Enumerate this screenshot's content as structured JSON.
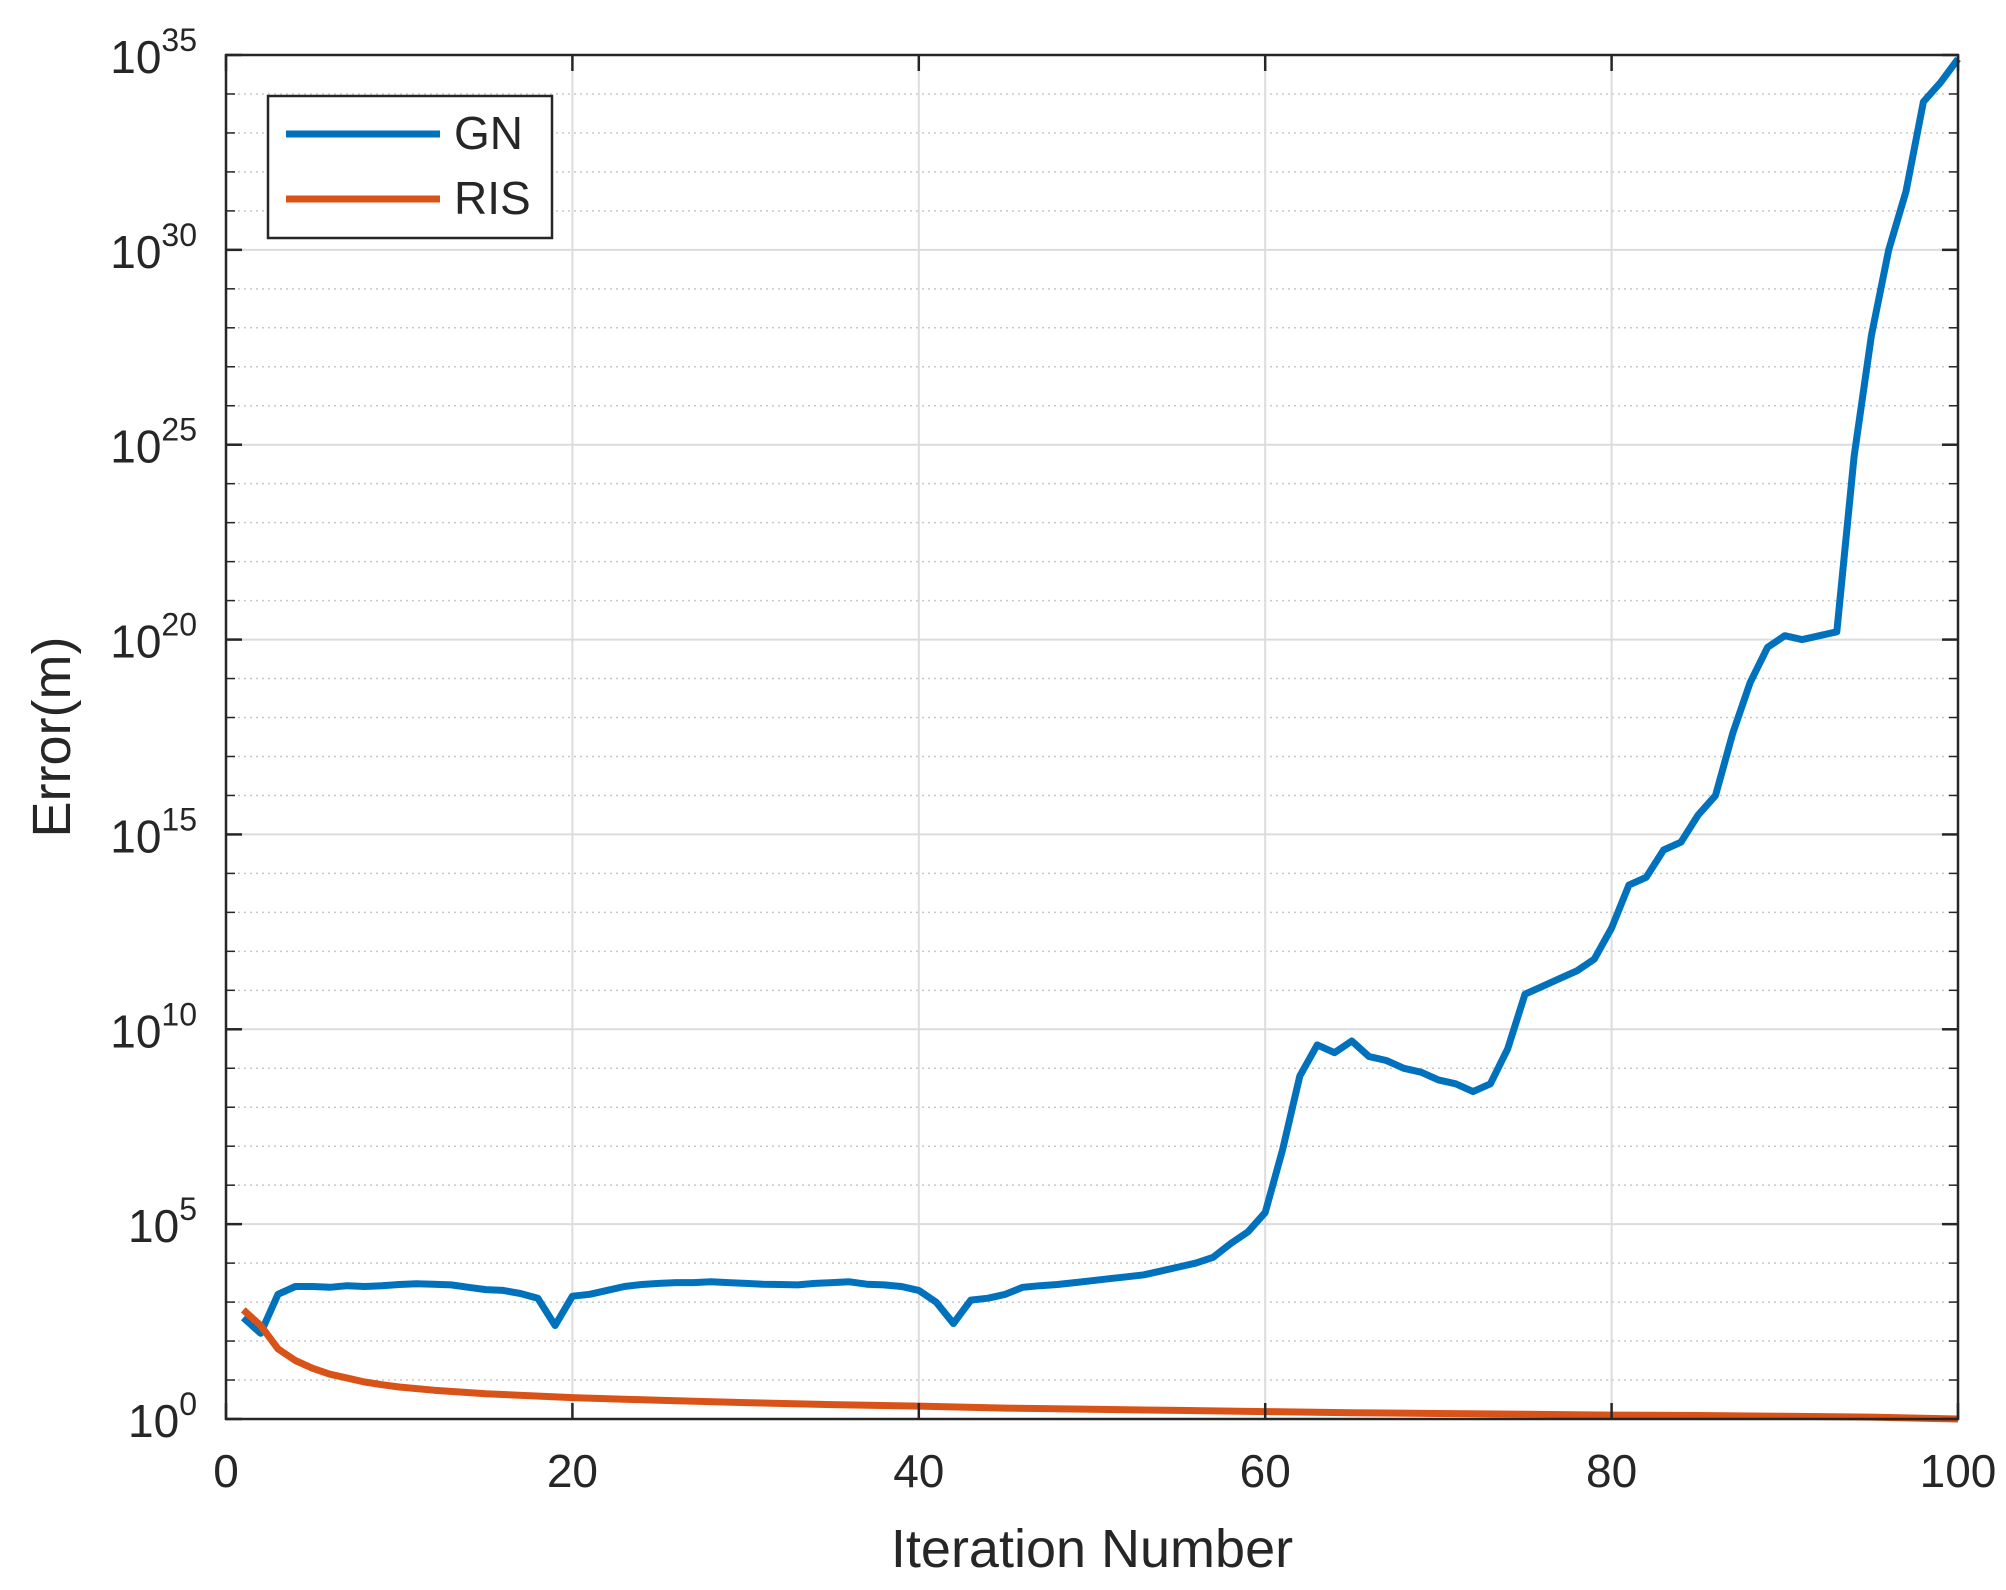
{
  "chart_data": {
    "type": "line",
    "title": "",
    "xlabel": "Iteration Number",
    "ylabel": "Error(m)",
    "xlim": [
      0,
      100
    ],
    "ylim_exponent": [
      0,
      35
    ],
    "y_scale": "log",
    "grid": true,
    "minor_grid": true,
    "legend_position": "top-left",
    "x_ticks": [
      "0",
      "20",
      "40",
      "60",
      "80",
      "100"
    ],
    "y_ticks": [
      {
        "base": "10",
        "exp": "0"
      },
      {
        "base": "10",
        "exp": "5"
      },
      {
        "base": "10",
        "exp": "10"
      },
      {
        "base": "10",
        "exp": "15"
      },
      {
        "base": "10",
        "exp": "20"
      },
      {
        "base": "10",
        "exp": "25"
      },
      {
        "base": "10",
        "exp": "30"
      },
      {
        "base": "10",
        "exp": "35"
      }
    ],
    "series": [
      {
        "name": "GN",
        "color": "#0072BD",
        "log10_y": [
          [
            1,
            2.6
          ],
          [
            2,
            2.2
          ],
          [
            3,
            3.2
          ],
          [
            4,
            3.4
          ],
          [
            5,
            3.4
          ],
          [
            6,
            3.38
          ],
          [
            7,
            3.42
          ],
          [
            8,
            3.4
          ],
          [
            9,
            3.42
          ],
          [
            10,
            3.45
          ],
          [
            11,
            3.47
          ],
          [
            12,
            3.46
          ],
          [
            13,
            3.44
          ],
          [
            14,
            3.38
          ],
          [
            15,
            3.32
          ],
          [
            16,
            3.3
          ],
          [
            17,
            3.22
          ],
          [
            18,
            3.1
          ],
          [
            19,
            2.4
          ],
          [
            20,
            3.15
          ],
          [
            21,
            3.2
          ],
          [
            22,
            3.3
          ],
          [
            23,
            3.4
          ],
          [
            24,
            3.45
          ],
          [
            25,
            3.48
          ],
          [
            26,
            3.5
          ],
          [
            27,
            3.5
          ],
          [
            28,
            3.52
          ],
          [
            29,
            3.5
          ],
          [
            30,
            3.48
          ],
          [
            31,
            3.46
          ],
          [
            32,
            3.45
          ],
          [
            33,
            3.44
          ],
          [
            34,
            3.48
          ],
          [
            35,
            3.5
          ],
          [
            36,
            3.52
          ],
          [
            37,
            3.46
          ],
          [
            38,
            3.44
          ],
          [
            39,
            3.4
          ],
          [
            40,
            3.3
          ],
          [
            41,
            3.0
          ],
          [
            42,
            2.45
          ],
          [
            43,
            3.05
          ],
          [
            44,
            3.1
          ],
          [
            45,
            3.2
          ],
          [
            46,
            3.38
          ],
          [
            47,
            3.42
          ],
          [
            48,
            3.45
          ],
          [
            49,
            3.5
          ],
          [
            50,
            3.55
          ],
          [
            51,
            3.6
          ],
          [
            52,
            3.65
          ],
          [
            53,
            3.7
          ],
          [
            54,
            3.8
          ],
          [
            55,
            3.9
          ],
          [
            56,
            4.0
          ],
          [
            57,
            4.15
          ],
          [
            58,
            4.5
          ],
          [
            59,
            4.8
          ],
          [
            60,
            5.3
          ],
          [
            61,
            6.9
          ],
          [
            62,
            8.8
          ],
          [
            63,
            9.6
          ],
          [
            64,
            9.4
          ],
          [
            65,
            9.7
          ],
          [
            66,
            9.3
          ],
          [
            67,
            9.2
          ],
          [
            68,
            9.0
          ],
          [
            69,
            8.9
          ],
          [
            70,
            8.7
          ],
          [
            71,
            8.6
          ],
          [
            72,
            8.4
          ],
          [
            73,
            8.6
          ],
          [
            74,
            9.5
          ],
          [
            75,
            10.9
          ],
          [
            76,
            11.1
          ],
          [
            77,
            11.3
          ],
          [
            78,
            11.5
          ],
          [
            79,
            11.8
          ],
          [
            80,
            12.6
          ],
          [
            81,
            13.7
          ],
          [
            82,
            13.9
          ],
          [
            83,
            14.6
          ],
          [
            84,
            14.8
          ],
          [
            85,
            15.5
          ],
          [
            86,
            16.0
          ],
          [
            87,
            17.6
          ],
          [
            88,
            18.9
          ],
          [
            89,
            19.8
          ],
          [
            90,
            20.1
          ],
          [
            91,
            20.0
          ],
          [
            92,
            20.1
          ],
          [
            93,
            20.2
          ],
          [
            94,
            24.7
          ],
          [
            95,
            27.8
          ],
          [
            96,
            30.0
          ],
          [
            97,
            31.5
          ],
          [
            98,
            33.8
          ],
          [
            99,
            34.3
          ],
          [
            100,
            34.9
          ]
        ]
      },
      {
        "name": "RIS",
        "color": "#D95319",
        "log10_y": [
          [
            1,
            2.8
          ],
          [
            2,
            2.4
          ],
          [
            3,
            1.8
          ],
          [
            4,
            1.5
          ],
          [
            5,
            1.3
          ],
          [
            6,
            1.15
          ],
          [
            7,
            1.05
          ],
          [
            8,
            0.95
          ],
          [
            9,
            0.88
          ],
          [
            10,
            0.82
          ],
          [
            12,
            0.74
          ],
          [
            15,
            0.65
          ],
          [
            20,
            0.55
          ],
          [
            25,
            0.48
          ],
          [
            30,
            0.42
          ],
          [
            35,
            0.37
          ],
          [
            40,
            0.33
          ],
          [
            45,
            0.28
          ],
          [
            50,
            0.25
          ],
          [
            55,
            0.22
          ],
          [
            60,
            0.19
          ],
          [
            65,
            0.16
          ],
          [
            70,
            0.14
          ],
          [
            75,
            0.12
          ],
          [
            80,
            0.1
          ],
          [
            85,
            0.09
          ],
          [
            90,
            0.07
          ],
          [
            95,
            0.05
          ],
          [
            100,
            0.0
          ]
        ]
      }
    ]
  }
}
